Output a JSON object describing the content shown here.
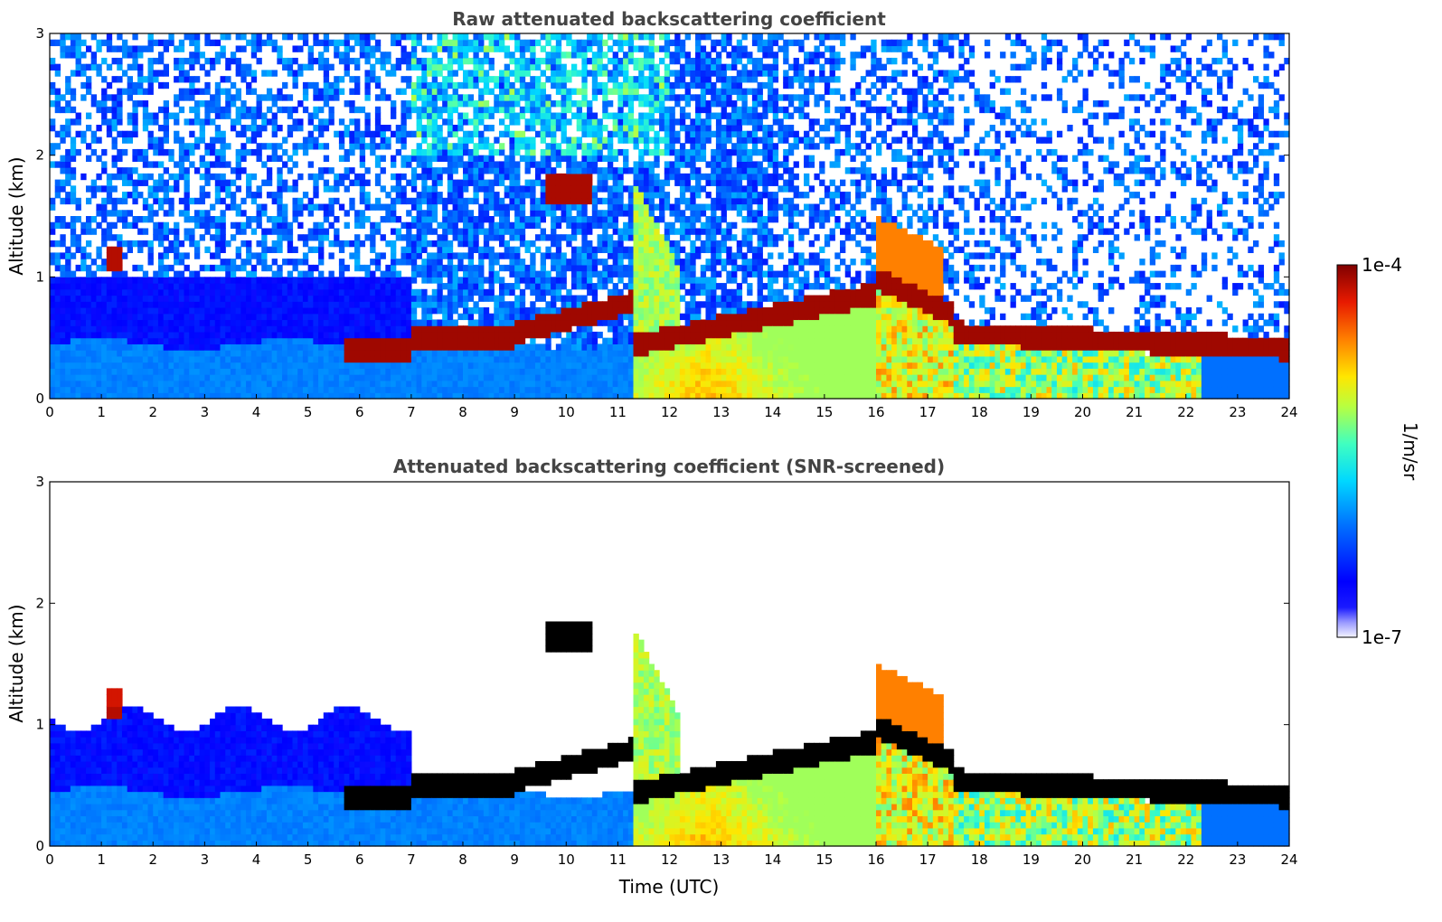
{
  "chart_data": [
    {
      "type": "heatmap",
      "title": "Raw attenuated backscattering coefficient",
      "xlabel": "",
      "ylabel": "Altitude (km)",
      "xlim": [
        0,
        24
      ],
      "ylim": [
        0,
        3
      ],
      "x_ticks": [
        "0",
        "1",
        "2",
        "3",
        "4",
        "5",
        "6",
        "7",
        "8",
        "9",
        "10",
        "11",
        "12",
        "13",
        "14",
        "15",
        "16",
        "17",
        "18",
        "19",
        "20",
        "21",
        "22",
        "23",
        "24"
      ],
      "y_ticks": [
        "0",
        "1",
        "2",
        "3"
      ],
      "grid": false,
      "screened": false,
      "colormap": "jet",
      "features": [
        {
          "x": [
            0,
            11.3
          ],
          "y": [
            0,
            0.45
          ],
          "level": "boundary-layer-blue"
        },
        {
          "x": [
            1.1,
            1.4
          ],
          "y": [
            1.05,
            1.25
          ],
          "level": "cloud-max"
        },
        {
          "x": [
            9.6,
            10.5
          ],
          "y": [
            1.65,
            1.85
          ],
          "level": "cloud-max"
        },
        {
          "x": [
            5.7,
            11.3
          ],
          "y": [
            0.35,
            0.8
          ],
          "level": "cloud-max"
        },
        {
          "x": [
            11.3,
            16
          ],
          "y": [
            0,
            1.8
          ],
          "level": "precip-yellow-red"
        },
        {
          "x": [
            16,
            24
          ],
          "y": [
            0.35,
            1.4
          ],
          "level": "cloud-max"
        }
      ]
    },
    {
      "type": "heatmap",
      "title": "Attenuated backscattering coefficient (SNR-screened)",
      "xlabel": "Time (UTC)",
      "ylabel": "Altitude (km)",
      "xlim": [
        0,
        24
      ],
      "ylim": [
        0,
        3
      ],
      "x_ticks": [
        "0",
        "1",
        "2",
        "3",
        "4",
        "5",
        "6",
        "7",
        "8",
        "9",
        "10",
        "11",
        "12",
        "13",
        "14",
        "15",
        "16",
        "17",
        "18",
        "19",
        "20",
        "21",
        "22",
        "23",
        "24"
      ],
      "y_ticks": [
        "0",
        "1",
        "2",
        "3"
      ],
      "grid": false,
      "screened": true,
      "colormap": "jet",
      "features": [
        {
          "x": [
            0,
            11.3
          ],
          "y": [
            0,
            0.45
          ],
          "level": "boundary-layer-blue"
        },
        {
          "x": [
            1.1,
            1.4
          ],
          "y": [
            1.05,
            1.3
          ],
          "level": "cloud-max"
        },
        {
          "x": [
            9.6,
            10.5
          ],
          "y": [
            1.6,
            1.85
          ],
          "level": "cloud-max"
        },
        {
          "x": [
            11.3,
            24
          ],
          "y": [
            0,
            1.9
          ],
          "level": "screened-signal"
        }
      ]
    }
  ],
  "colorbar": {
    "label": "1/m/sr",
    "max_label": "1e-4",
    "min_label": "1e-7",
    "range": [
      1e-07,
      0.0001
    ],
    "scale": "log"
  }
}
